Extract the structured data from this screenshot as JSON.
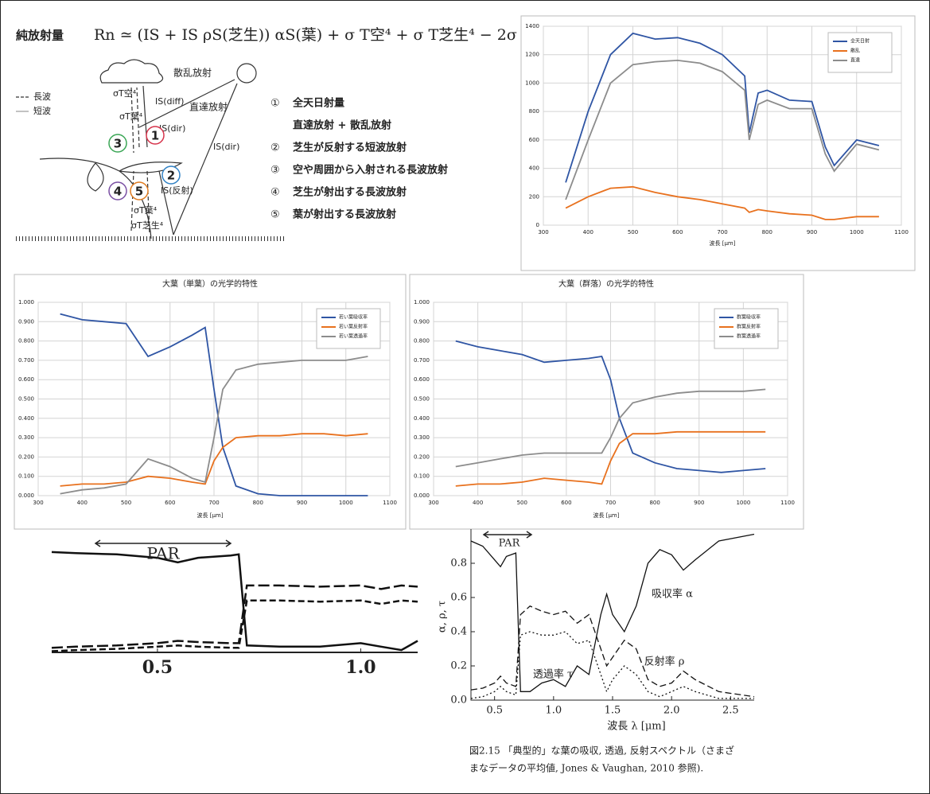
{
  "diagram": {
    "title": "純放射量",
    "formula": "Rn ≃ (IS + IS ρS(芝生)) αS(葉) + σ T空⁴ + σ T芝生⁴ − 2σ T葉⁴",
    "labels": [
      "散乱放射",
      "直達放射",
      "長波",
      "短波",
      "σT空⁴",
      "σT葉⁴",
      "IS(diff)",
      "IS(dir)",
      "IS(dir)",
      "IS(反射)",
      "σT葉⁴",
      "σT芝生⁴"
    ],
    "numbers": [
      "3",
      "1",
      "2",
      "4",
      "5"
    ],
    "list": [
      {
        "number": "①",
        "text": "全天日射量"
      },
      {
        "text": "直達放射 + 散乱放射"
      },
      {
        "number": "②",
        "text": "芝生が反射する短波放射"
      },
      {
        "number": "③",
        "text": "空や周囲から入射される長波放射"
      },
      {
        "number": "④",
        "text": "芝生が射出する長波放射"
      },
      {
        "number": "⑤",
        "text": "葉が射出する長波放射"
      }
    ]
  },
  "chart_data": [
    {
      "type": "line",
      "xlabel": "波長 [μm]",
      "grid": true,
      "legend": "upper right",
      "xlim": [
        300,
        1100
      ],
      "xticks": [
        300,
        400,
        500,
        600,
        700,
        800,
        900,
        1000,
        1100
      ],
      "ylim": [
        0,
        1400
      ],
      "yticks": [
        0,
        200,
        400,
        600,
        800,
        1000,
        1200,
        1400
      ],
      "x": [
        350,
        400,
        450,
        500,
        550,
        600,
        650,
        700,
        750,
        760,
        780,
        800,
        850,
        900,
        930,
        950,
        1000,
        1050
      ],
      "series": [
        {
          "name": "全天日射",
          "color": "#2f55a4",
          "dash": "solid",
          "values": [
            300,
            800,
            1200,
            1350,
            1310,
            1320,
            1280,
            1200,
            1050,
            650,
            930,
            950,
            880,
            870,
            550,
            420,
            600,
            560
          ]
        },
        {
          "name": "散乱",
          "color": "#e8711e",
          "dash": "solid",
          "values": [
            120,
            200,
            260,
            270,
            230,
            200,
            180,
            150,
            120,
            90,
            110,
            100,
            80,
            70,
            40,
            40,
            60,
            60
          ]
        },
        {
          "name": "直達",
          "color": "#8c8c8c",
          "dash": "solid",
          "values": [
            180,
            600,
            1000,
            1130,
            1150,
            1160,
            1140,
            1080,
            950,
            600,
            850,
            880,
            820,
            820,
            500,
            380,
            570,
            530
          ]
        }
      ]
    },
    {
      "type": "line",
      "title": "大葉（単葉）の光学的特性",
      "xlabel": "波長 [μm]",
      "grid": true,
      "legend": "upper right",
      "xlim": [
        300,
        1100
      ],
      "xticks": [
        300,
        400,
        500,
        600,
        700,
        800,
        900,
        1000,
        1100
      ],
      "ylim": [
        0,
        1
      ],
      "yticks": [
        {
          "value": 0,
          "label": "0.000"
        },
        {
          "value": 0.1,
          "label": "0.100"
        },
        {
          "value": 0.2,
          "label": "0.200"
        },
        {
          "value": 0.3,
          "label": "0.300"
        },
        {
          "value": 0.4,
          "label": "0.400"
        },
        {
          "value": 0.5,
          "label": "0.500"
        },
        {
          "value": 0.6,
          "label": "0.600"
        },
        {
          "value": 0.7,
          "label": "0.700"
        },
        {
          "value": 0.8,
          "label": "0.800"
        },
        {
          "value": 0.9,
          "label": "0.900"
        },
        {
          "value": 1,
          "label": "1.000"
        }
      ],
      "x": [
        350,
        400,
        450,
        500,
        550,
        600,
        650,
        680,
        700,
        720,
        750,
        800,
        850,
        900,
        950,
        1000,
        1050
      ],
      "series": [
        {
          "name": "若い葉吸収率",
          "color": "#2f55a4",
          "dash": "solid",
          "values": [
            0.94,
            0.91,
            0.9,
            0.89,
            0.72,
            0.77,
            0.83,
            0.87,
            0.55,
            0.25,
            0.05,
            0.01,
            0,
            0,
            0,
            0,
            0
          ]
        },
        {
          "name": "若い葉反射率",
          "color": "#e8711e",
          "dash": "solid",
          "values": [
            0.05,
            0.06,
            0.06,
            0.07,
            0.1,
            0.09,
            0.07,
            0.06,
            0.18,
            0.25,
            0.3,
            0.31,
            0.31,
            0.32,
            0.32,
            0.31,
            0.32
          ]
        },
        {
          "name": "若い葉透過率",
          "color": "#8c8c8c",
          "dash": "solid",
          "values": [
            0.01,
            0.03,
            0.04,
            0.06,
            0.19,
            0.15,
            0.09,
            0.07,
            0.3,
            0.55,
            0.65,
            0.68,
            0.69,
            0.7,
            0.7,
            0.7,
            0.72
          ]
        }
      ]
    },
    {
      "type": "line",
      "title": "大葉（群落）の光学的特性",
      "xlabel": "波長 [μm]",
      "grid": true,
      "legend": "upper right",
      "xlim": [
        300,
        1100
      ],
      "xticks": [
        300,
        400,
        500,
        600,
        700,
        800,
        900,
        1000,
        1100
      ],
      "ylim": [
        0,
        1
      ],
      "yticks": [
        {
          "value": 0,
          "label": "0.000"
        },
        {
          "value": 0.1,
          "label": "0.100"
        },
        {
          "value": 0.2,
          "label": "0.200"
        },
        {
          "value": 0.3,
          "label": "0.300"
        },
        {
          "value": 0.4,
          "label": "0.400"
        },
        {
          "value": 0.5,
          "label": "0.500"
        },
        {
          "value": 0.6,
          "label": "0.600"
        },
        {
          "value": 0.7,
          "label": "0.700"
        },
        {
          "value": 0.8,
          "label": "0.800"
        },
        {
          "value": 0.9,
          "label": "0.900"
        },
        {
          "value": 1,
          "label": "1.000"
        }
      ],
      "x": [
        350,
        400,
        450,
        500,
        550,
        600,
        650,
        680,
        700,
        720,
        750,
        800,
        850,
        900,
        950,
        1000,
        1050
      ],
      "series": [
        {
          "name": "群葉吸収率",
          "color": "#2f55a4",
          "dash": "solid",
          "values": [
            0.8,
            0.77,
            0.75,
            0.73,
            0.69,
            0.7,
            0.71,
            0.72,
            0.6,
            0.4,
            0.22,
            0.17,
            0.14,
            0.13,
            0.12,
            0.13,
            0.14
          ]
        },
        {
          "name": "群葉反射率",
          "color": "#e8711e",
          "dash": "solid",
          "values": [
            0.05,
            0.06,
            0.06,
            0.07,
            0.09,
            0.08,
            0.07,
            0.06,
            0.18,
            0.27,
            0.32,
            0.32,
            0.33,
            0.33,
            0.33,
            0.33,
            0.33
          ]
        },
        {
          "name": "群葉透過率",
          "color": "#8c8c8c",
          "dash": "solid",
          "values": [
            0.15,
            0.17,
            0.19,
            0.21,
            0.22,
            0.22,
            0.22,
            0.22,
            0.3,
            0.4,
            0.48,
            0.51,
            0.53,
            0.54,
            0.54,
            0.54,
            0.55
          ]
        }
      ]
    },
    {
      "type": "line",
      "grid": false,
      "annotations": [
        "PAR"
      ],
      "xlim": [
        0.24,
        1.14
      ],
      "xticks": [
        0.5,
        {
          "value": 1,
          "label": "1.0"
        }
      ],
      "ylim": [
        0,
        1
      ],
      "x": [
        0.24,
        0.3,
        0.4,
        0.5,
        0.55,
        0.6,
        0.68,
        0.7,
        0.72,
        0.8,
        0.9,
        1.0,
        1.05,
        1.1,
        1.14
      ],
      "series": [
        {
          "color": "#111111",
          "dash": "solid",
          "values": [
            0.87,
            0.86,
            0.85,
            0.82,
            0.78,
            0.82,
            0.84,
            0.85,
            0.06,
            0.05,
            0.05,
            0.08,
            0.05,
            0.02,
            0.1
          ]
        },
        {
          "color": "#111111",
          "dash": "longdash",
          "values": [
            0.04,
            0.05,
            0.06,
            0.08,
            0.1,
            0.09,
            0.08,
            0.08,
            0.58,
            0.58,
            0.57,
            0.58,
            0.55,
            0.58,
            0.57
          ]
        },
        {
          "color": "#111111",
          "dash": "dashed",
          "values": [
            0.01,
            0.02,
            0.03,
            0.05,
            0.06,
            0.05,
            0.04,
            0.04,
            0.45,
            0.45,
            0.44,
            0.45,
            0.42,
            0.45,
            0.44
          ]
        }
      ]
    },
    {
      "type": "line",
      "grid": false,
      "xlabel": "波長 λ [μm]",
      "ylabel": "α, ρ, τ",
      "annotations": [
        "PAR",
        "吸収率 α",
        "反射率 ρ",
        "透過率 τ"
      ],
      "caption": [
        "図2.15 「典型的」な葉の吸収, 透過, 反射スペクトル（さまざ",
        "まなデータの平均値, Jones & Vaughan, 2010 参照)."
      ],
      "xlim": [
        0.3,
        2.7
      ],
      "xticks": [
        0.5,
        {
          "value": 1,
          "label": "1.0"
        },
        1.5,
        {
          "value": 2,
          "label": "2.0"
        },
        2.5
      ],
      "ylim": [
        0,
        1
      ],
      "yticks": [
        {
          "value": 0,
          "label": "0.0"
        },
        0.2,
        0.4,
        0.6,
        0.8
      ],
      "x": [
        0.3,
        0.4,
        0.5,
        0.55,
        0.6,
        0.68,
        0.72,
        0.8,
        0.9,
        1.0,
        1.1,
        1.2,
        1.3,
        1.4,
        1.45,
        1.5,
        1.6,
        1.7,
        1.8,
        1.9,
        2.0,
        2.1,
        2.2,
        2.4,
        2.7
      ],
      "series": [
        {
          "color": "#111111",
          "dash": "solid",
          "values": [
            0.93,
            0.9,
            0.82,
            0.78,
            0.84,
            0.86,
            0.05,
            0.05,
            0.1,
            0.12,
            0.08,
            0.2,
            0.15,
            0.5,
            0.62,
            0.5,
            0.4,
            0.55,
            0.8,
            0.88,
            0.85,
            0.76,
            0.82,
            0.93,
            0.97
          ]
        },
        {
          "color": "#111111",
          "dash": "dashed",
          "values": [
            0.06,
            0.07,
            0.1,
            0.14,
            0.1,
            0.08,
            0.5,
            0.55,
            0.52,
            0.5,
            0.52,
            0.45,
            0.5,
            0.3,
            0.2,
            0.25,
            0.35,
            0.3,
            0.12,
            0.08,
            0.1,
            0.17,
            0.12,
            0.05,
            0.02
          ]
        },
        {
          "color": "#111111",
          "dash": "dotted",
          "values": [
            0.01,
            0.02,
            0.05,
            0.08,
            0.05,
            0.03,
            0.38,
            0.4,
            0.38,
            0.38,
            0.4,
            0.33,
            0.35,
            0.15,
            0.05,
            0.12,
            0.2,
            0.15,
            0.05,
            0.02,
            0.05,
            0.08,
            0.05,
            0.01,
            0.01
          ]
        }
      ]
    }
  ]
}
